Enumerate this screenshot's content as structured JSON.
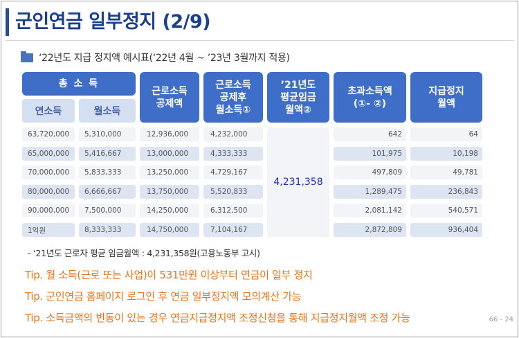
{
  "title": "군인연금 일부정지 (2/9)",
  "subtitle": "‘22년도 지급 정지액 예시표(‘22년 4월 ~ ’23년 3월까지 적용)",
  "headers": {
    "total_income": "총 소 득",
    "annual_income": "연소득",
    "monthly_income": "월소득",
    "deduction": [
      "근로소득",
      "공제액"
    ],
    "monthly_after_deduction": [
      "근로소득",
      "공제후",
      "월소득①"
    ],
    "avg_wage": [
      "’21년도",
      "평균임금",
      "월액②"
    ],
    "excess": [
      "초과소득액",
      "(①- ②)"
    ],
    "suspension": [
      "지급정지",
      "월액"
    ]
  },
  "avg_wage_value": "4,231,358",
  "rows": [
    {
      "annual": "63,720,000",
      "monthly": "5,310,000",
      "deduction": "12,936,000",
      "after": "4,232,000",
      "excess": "642",
      "suspension": "64"
    },
    {
      "annual": "65,000,000",
      "monthly": "5,416,667",
      "deduction": "13,000,000",
      "after": "4,333,333",
      "excess": "101,975",
      "suspension": "10,198"
    },
    {
      "annual": "70,000,000",
      "monthly": "5,833,333",
      "deduction": "13,250,000",
      "after": "4,729,167",
      "excess": "497,809",
      "suspension": "49,781"
    },
    {
      "annual": "80,000,000",
      "monthly": "6,666,667",
      "deduction": "13,750,000",
      "after": "5,520,833",
      "excess": "1,289,475",
      "suspension": "236,843"
    },
    {
      "annual": "90,000,000",
      "monthly": "7,500,000",
      "deduction": "14,250,000",
      "after": "6,312,500",
      "excess": "2,081,142",
      "suspension": "540,571"
    },
    {
      "annual": "1억원",
      "monthly": "8,333,333",
      "deduction": "14,750,000",
      "after": "7,104,167",
      "excess": "2,872,809",
      "suspension": "936,404"
    }
  ],
  "note": "- ‘21년도 근로자 평균 임금월액 : 4,231,358원(고용노동부 고시)",
  "tips": [
    "Tip. 월 소득(근로 또는 사업)이 531만원 이상부터 연금이 일부 정지",
    "Tip. 군인연금 홈페이지 로그인 후 연금 일부정지액 모의계산 가능",
    "Tip. 소득금액의 변동이 있는 경우 연금지급정지액 조정신청을 통해 지급정지월액 조정 가능"
  ],
  "page_number": "66 - 24"
}
